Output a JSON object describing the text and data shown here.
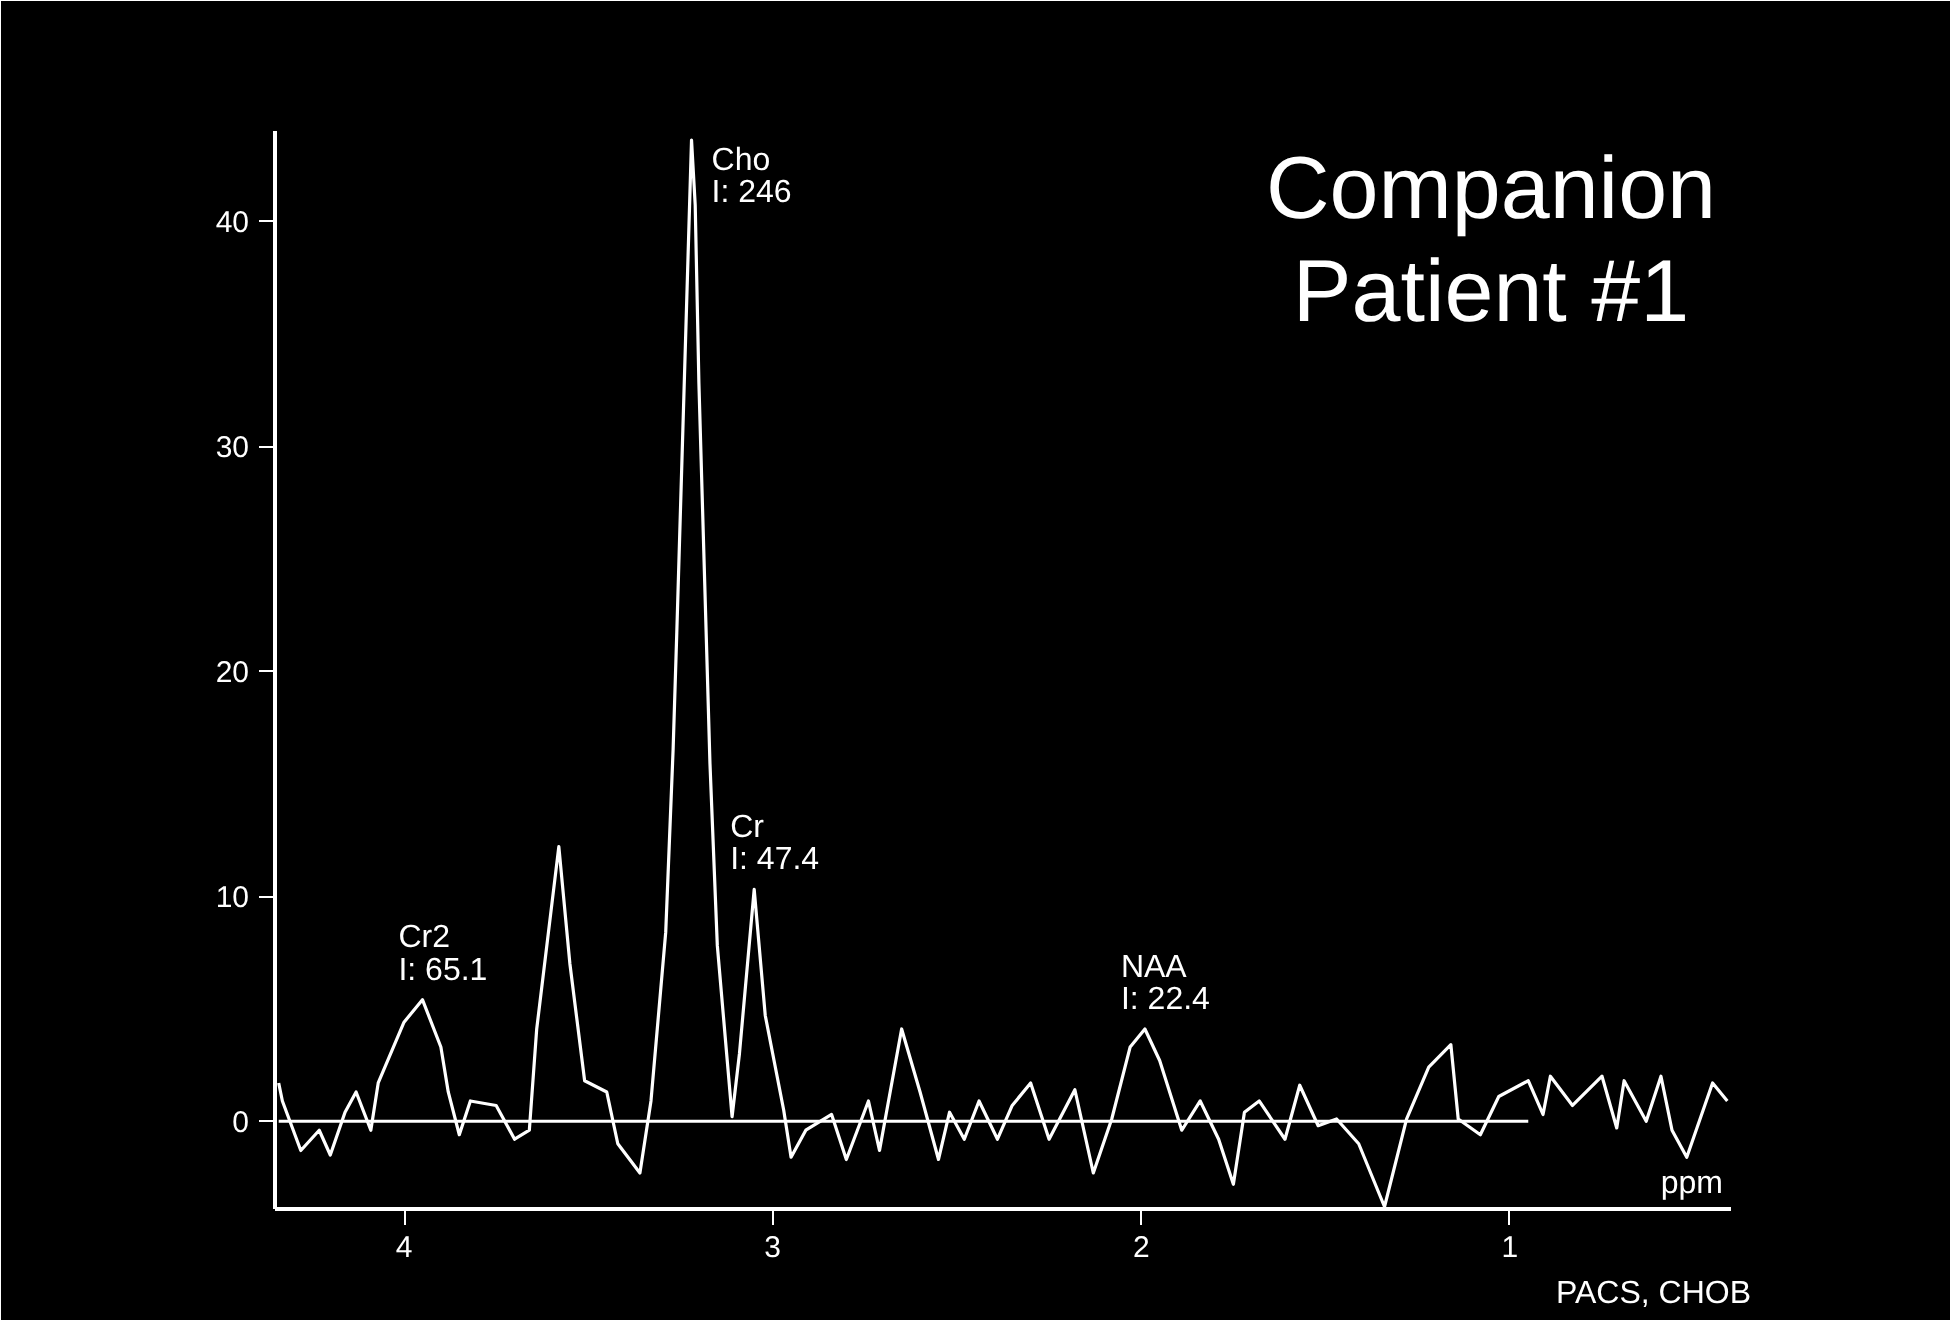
{
  "chart_data": {
    "type": "line",
    "title": "Companion\nPatient #1",
    "xlabel": "ppm",
    "xlim": [
      4.35,
      0.4
    ],
    "ylim": [
      -3.9,
      44
    ],
    "xticks": [
      4,
      3,
      2,
      1
    ],
    "yticks": [
      0,
      10,
      20,
      30,
      40
    ],
    "grid": false,
    "marker": "none",
    "line_style": "solid",
    "series": [
      {
        "color": "#ffffff",
        "x": [
          4.34,
          4.33,
          4.28,
          4.23,
          4.2,
          4.16,
          4.13,
          4.09,
          4.07,
          4.0,
          3.95,
          3.9,
          3.88,
          3.85,
          3.82,
          3.75,
          3.7,
          3.66,
          3.64,
          3.58,
          3.55,
          3.51,
          3.45,
          3.42,
          3.36,
          3.33,
          3.29,
          3.27,
          3.26,
          3.22,
          3.21,
          3.2,
          3.17,
          3.15,
          3.11,
          3.09,
          3.05,
          3.02,
          2.97,
          2.95,
          2.91,
          2.84,
          2.8,
          2.74,
          2.71,
          2.65,
          2.6,
          2.55,
          2.52,
          2.48,
          2.44,
          2.39,
          2.35,
          2.3,
          2.25,
          2.18,
          2.13,
          2.08,
          2.03,
          1.99,
          1.95,
          1.89,
          1.84,
          1.79,
          1.75,
          1.72,
          1.68,
          1.61,
          1.57,
          1.52,
          1.47,
          1.41,
          1.34,
          1.28,
          1.22,
          1.16,
          1.14,
          1.08,
          1.03,
          0.95,
          0.91,
          0.89,
          0.83,
          0.75,
          0.71,
          0.69,
          0.63,
          0.59,
          0.56,
          0.52,
          0.45,
          0.41
        ],
        "values": [
          1.7,
          0.9,
          -1.3,
          -0.4,
          -1.5,
          0.4,
          1.3,
          -0.4,
          1.7,
          4.4,
          5.4,
          3.3,
          1.3,
          -0.6,
          0.9,
          0.7,
          -0.8,
          -0.4,
          4.1,
          12.2,
          7.0,
          1.8,
          1.3,
          -1.0,
          -2.3,
          0.9,
          8.4,
          16.5,
          21.7,
          43.6,
          40.7,
          32.8,
          15.9,
          7.8,
          0.2,
          3.0,
          10.3,
          4.7,
          0.5,
          -1.6,
          -0.4,
          0.3,
          -1.7,
          0.9,
          -1.3,
          4.1,
          1.3,
          -1.7,
          0.4,
          -0.8,
          0.9,
          -0.8,
          0.7,
          1.7,
          -0.8,
          1.4,
          -2.3,
          0.1,
          3.3,
          4.1,
          2.7,
          -0.4,
          0.9,
          -0.8,
          -2.8,
          0.4,
          0.9,
          -0.8,
          1.6,
          -0.2,
          0.1,
          -1.0,
          -3.8,
          0.1,
          2.4,
          3.4,
          0.1,
          -0.6,
          1.1,
          1.8,
          0.3,
          2.0,
          0.7,
          2.0,
          -0.3,
          1.8,
          0.0,
          2.0,
          -0.4,
          -1.6,
          1.7,
          0.9
        ]
      },
      {
        "color": "#ffffff",
        "x": [
          4.34,
          0.95
        ],
        "values": [
          0,
          0
        ]
      }
    ],
    "annotations": [
      {
        "text": "Cho\nI: 246",
        "x": 3.22,
        "y": 43.6
      },
      {
        "text": "Cr\nI: 47.4",
        "x": 3.05,
        "y": 10.3
      },
      {
        "text": "Cr2\nI: 65.1",
        "x": 3.95,
        "y": 5.4
      },
      {
        "text": "NAA\nI: 22.4",
        "x": 1.99,
        "y": 4.1
      },
      "PACS, CHOB"
    ]
  }
}
